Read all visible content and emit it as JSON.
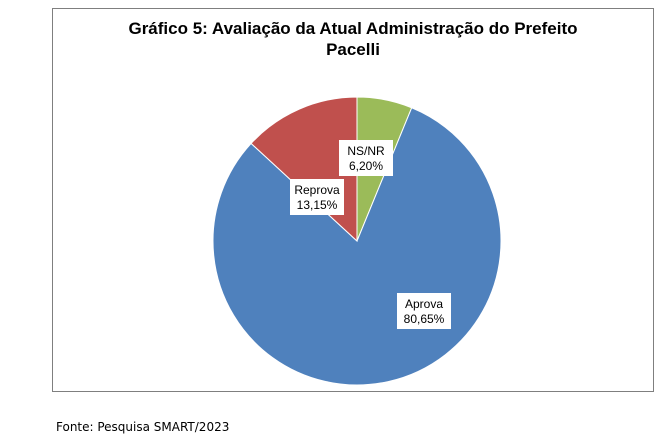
{
  "chart_data": {
    "type": "pie",
    "title_line1": "Gráfico 5: Avaliação da Atual Administração do Prefeito",
    "title_line2": "Pacelli",
    "slices": [
      {
        "label": "NS/NR",
        "value_text": "6,20%",
        "value": 6.2,
        "color": "#9bbb59"
      },
      {
        "label": "Aprova",
        "value_text": "80,65%",
        "value": 80.65,
        "color": "#4f81bd"
      },
      {
        "label": "Reprova",
        "value_text": "13,15%",
        "value": 13.15,
        "color": "#c0504d"
      }
    ]
  },
  "source": "Fonte: Pesquisa SMART/2023"
}
